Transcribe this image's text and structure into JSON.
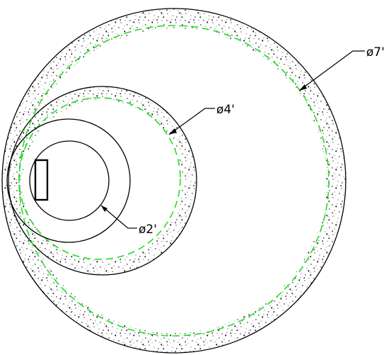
{
  "drawing": {
    "colors": {
      "outline": "#000000",
      "centerline": "#22dd22",
      "concrete_fill": "#ffffff",
      "stipple": "#000000"
    },
    "labels": {
      "outer_diameter": "ø7'",
      "middle_diameter": "ø4'",
      "inner_diameter": "ø2'"
    }
  }
}
